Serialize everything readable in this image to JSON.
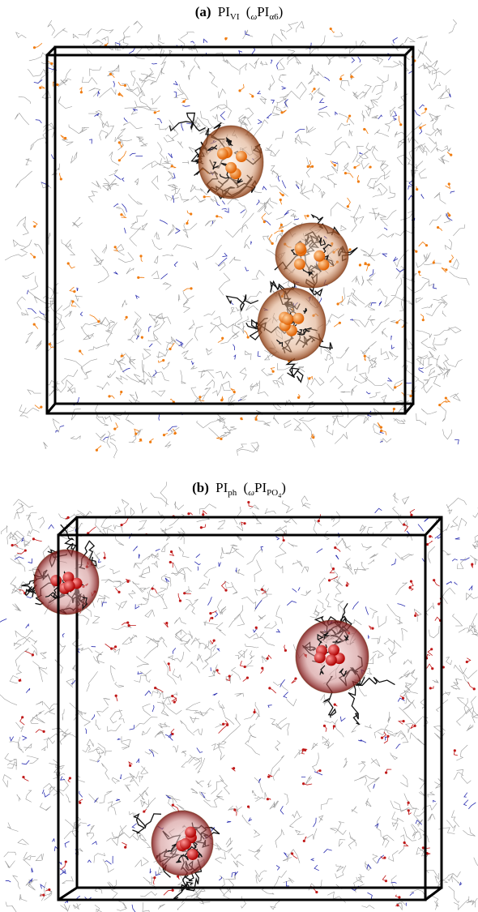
{
  "panels": [
    {
      "label": "(a)",
      "title": {
        "main": "PI",
        "sub": "VI",
        "open": "(",
        "prefix": "ω",
        "inner": "PI",
        "inner_sub": "α6",
        "close": ")"
      }
    },
    {
      "label": "(b)",
      "title": {
        "main": "PI",
        "sub": "ph",
        "open": "(",
        "prefix": "ω",
        "inner": "PI",
        "inner_sub": "PO",
        "inner_subsub": "4",
        "close": ")"
      }
    }
  ]
}
